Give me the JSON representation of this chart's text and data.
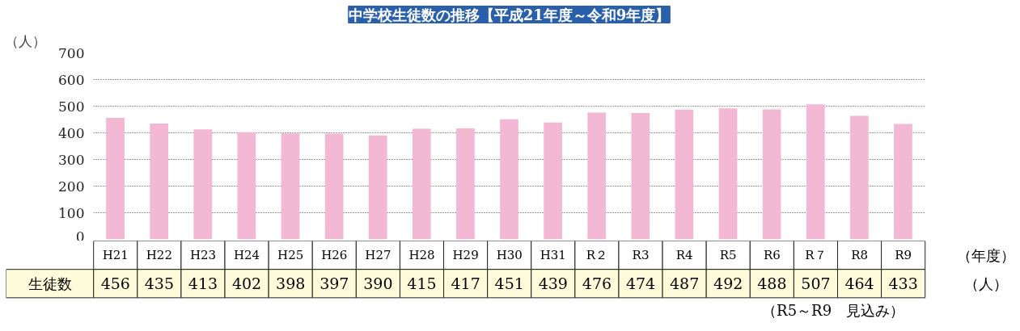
{
  "chart_data": {
    "type": "bar",
    "title": "中学校生徒数の推移【平成21年度～令和9年度】",
    "ylabel": "（人）",
    "xlabel": "（年度）",
    "categories": [
      "H21",
      "H22",
      "H23",
      "H24",
      "H25",
      "H26",
      "H27",
      "H28",
      "H29",
      "H30",
      "H31",
      "R２",
      "R3",
      "R4",
      "R5",
      "R6",
      "R７",
      "R8",
      "R9"
    ],
    "series": [
      {
        "name": "生徒数",
        "color": "#f2b8d4",
        "values": [
          456,
          435,
          413,
          402,
          398,
          397,
          390,
          415,
          417,
          451,
          439,
          476,
          474,
          487,
          492,
          488,
          507,
          464,
          433
        ]
      }
    ],
    "ylim": [
      0,
      700
    ],
    "yticks": [
      0,
      100,
      200,
      300,
      400,
      500,
      600,
      700
    ],
    "grid": "y",
    "data_labels": true,
    "annotations": [
      "（人）",
      "（R5～R9　見込み）"
    ]
  }
}
